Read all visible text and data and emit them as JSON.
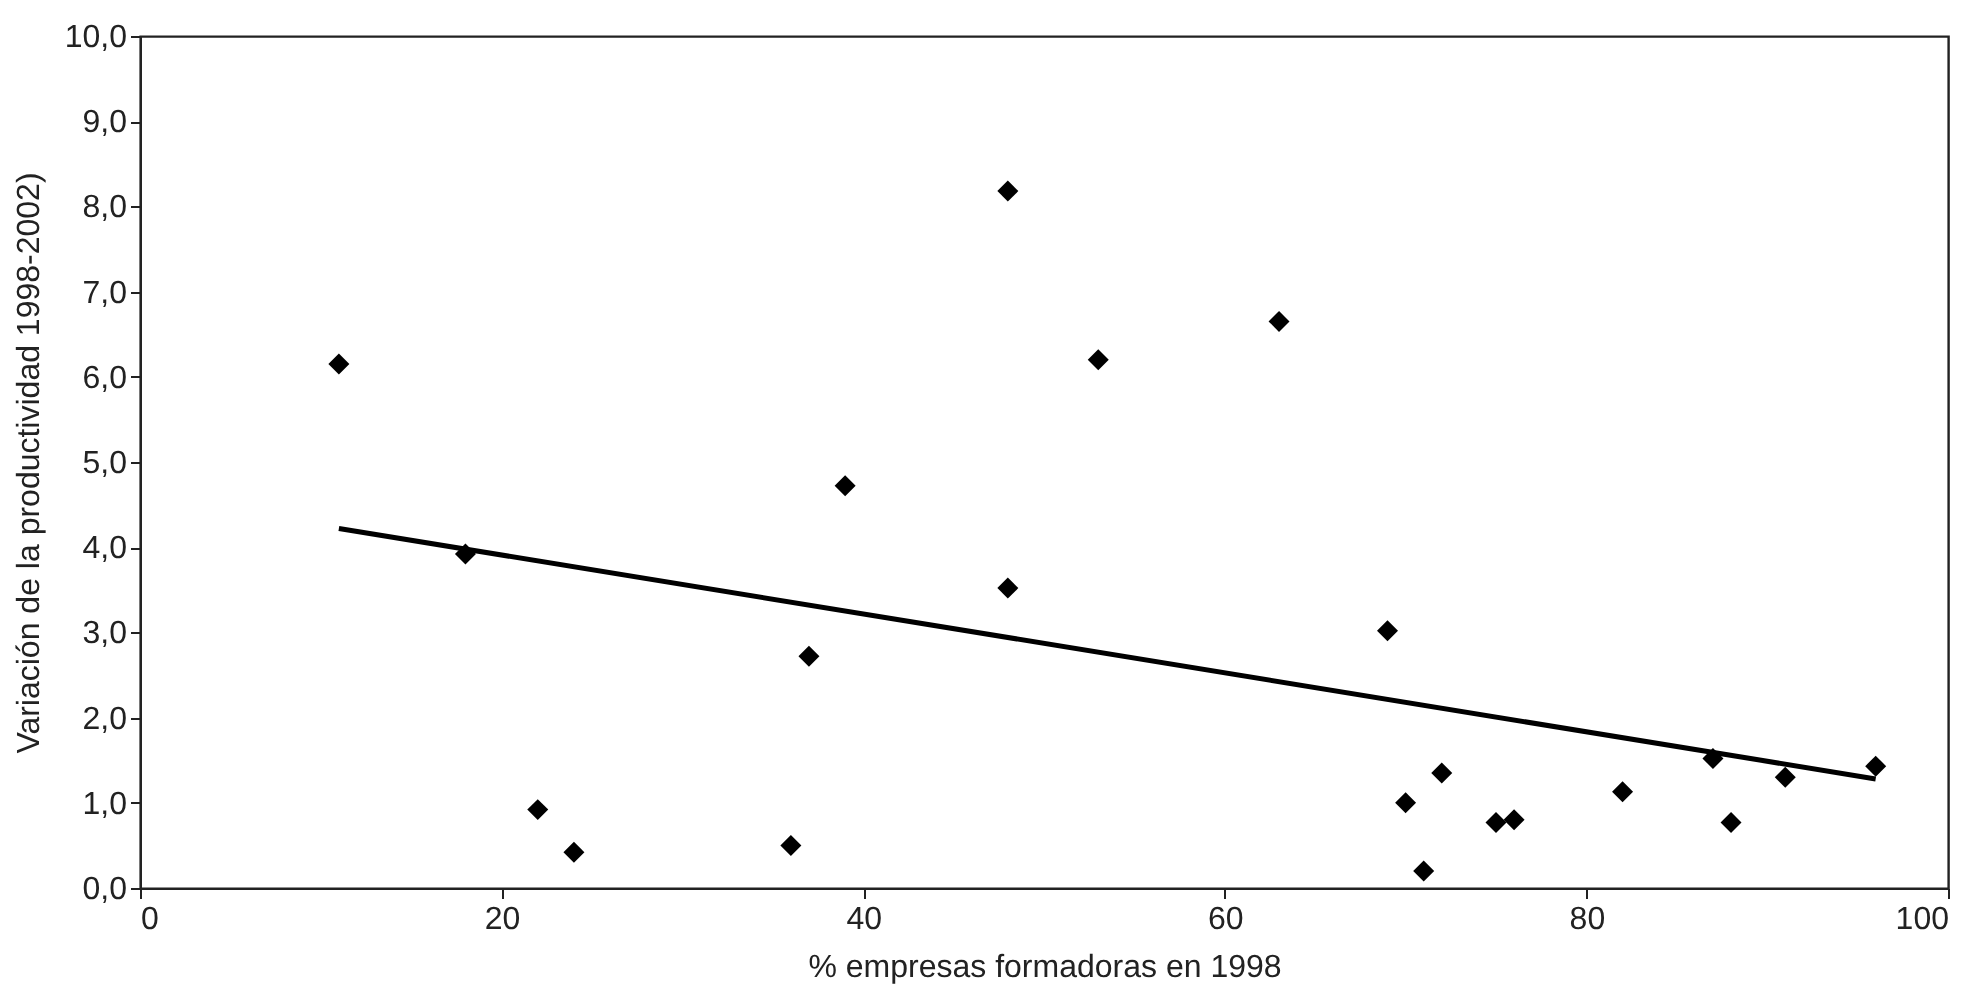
{
  "chart_data": {
    "type": "scatter",
    "xlabel": "% empresas formadoras en 1998",
    "ylabel": "Variación de la productividad 1998-2002)",
    "grid": false,
    "xlim": [
      0,
      100
    ],
    "xticks": [
      0,
      20,
      40,
      60,
      80,
      100
    ],
    "ylim": [
      0,
      10
    ],
    "yticks": [
      {
        "value": 0,
        "label": "0,0"
      },
      {
        "value": 1,
        "label": "1,0"
      },
      {
        "value": 2,
        "label": "2,0"
      },
      {
        "value": 3,
        "label": "3,0"
      },
      {
        "value": 4,
        "label": "4,0"
      },
      {
        "value": 5,
        "label": "5,0"
      },
      {
        "value": 6,
        "label": "6,0"
      },
      {
        "value": 7,
        "label": "7,0"
      },
      {
        "value": 8,
        "label": "8,0"
      },
      {
        "value": 9,
        "label": "9,0"
      },
      {
        "value": 10,
        "label": "10,0"
      }
    ],
    "series": [
      {
        "marker": "diamond",
        "color": "#000000",
        "x": [
          11,
          18,
          22,
          24,
          36,
          37,
          39,
          48,
          48,
          53,
          63,
          69,
          70,
          71,
          72,
          75,
          76,
          82,
          87,
          88,
          91,
          96
        ],
        "values": [
          6.15,
          3.92,
          0.92,
          0.42,
          0.5,
          2.72,
          4.72,
          8.18,
          3.52,
          6.2,
          6.65,
          3.02,
          1.0,
          0.2,
          1.35,
          0.77,
          0.8,
          1.13,
          1.52,
          0.77,
          1.3,
          1.43
        ]
      },
      {
        "type": "line",
        "color": "#000000",
        "line_style": "solid",
        "marker": "none",
        "x": [
          11,
          96
        ],
        "values": [
          4.22,
          1.28
        ]
      }
    ]
  }
}
